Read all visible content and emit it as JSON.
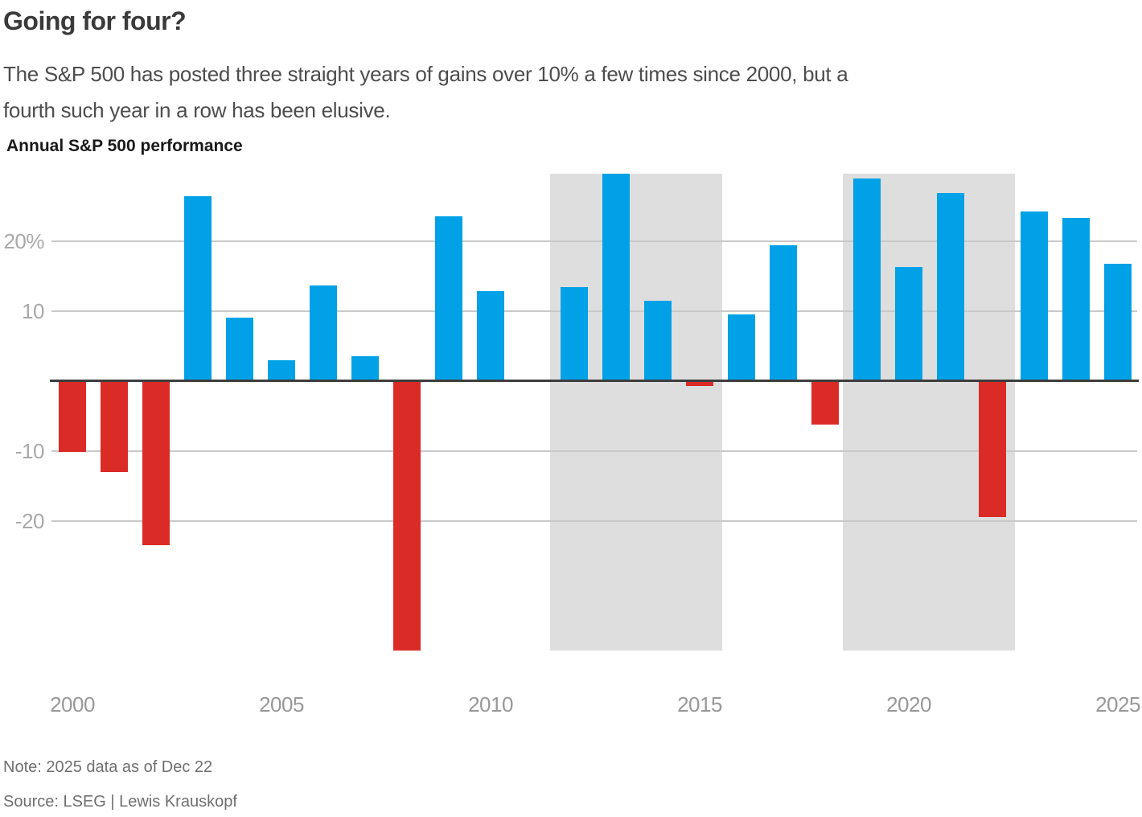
{
  "header": {
    "title": "Going for four?",
    "subtitle_line1": "The S&P 500 has posted three straight years of gains over 10% a few times since 2000, but a",
    "subtitle_line2": "fourth such year in a row has been elusive.",
    "chart_heading": "Annual S&P 500 performance"
  },
  "footer": {
    "note": "Note: 2025 data as of Dec 22",
    "source": "Source: LSEG | Lewis Krauskopf"
  },
  "chart_data": {
    "type": "bar",
    "title": "Annual S&P 500 performance",
    "unit": "percent",
    "years": [
      2000,
      2001,
      2002,
      2003,
      2004,
      2005,
      2006,
      2007,
      2008,
      2009,
      2010,
      2011,
      2012,
      2013,
      2014,
      2015,
      2016,
      2017,
      2018,
      2019,
      2020,
      2021,
      2022,
      2023,
      2024,
      2025
    ],
    "values": [
      -10.1,
      -13.0,
      -23.4,
      26.4,
      9.0,
      3.0,
      13.6,
      3.5,
      -38.5,
      23.5,
      12.8,
      0.0,
      13.4,
      29.6,
      11.4,
      -0.7,
      9.5,
      19.4,
      -6.2,
      28.9,
      16.3,
      26.9,
      -19.4,
      24.2,
      23.3,
      16.7
    ],
    "ylim": [
      -38.5,
      29.6
    ],
    "gridline_values": [
      20,
      10,
      -10,
      -20
    ],
    "ytick_labels": [
      "20%",
      "10",
      "-10",
      "-20"
    ],
    "xtick_years": [
      2000,
      2005,
      2010,
      2015,
      2020,
      2025
    ],
    "xtick_labels": [
      "2000",
      "2005",
      "2010",
      "2015",
      "2020",
      "2025"
    ],
    "highlight_bands": [
      {
        "start_year": 2012,
        "end_year": 2015
      },
      {
        "start_year": 2019,
        "end_year": 2022
      }
    ],
    "positive_color": "#00a1e6",
    "negative_color": "#db2b26",
    "highlight_color": "#dedede",
    "gridline_color": "#c9c9c9",
    "zeroline_color": "#3d3d3d",
    "grid_on": true,
    "legend": "none"
  }
}
